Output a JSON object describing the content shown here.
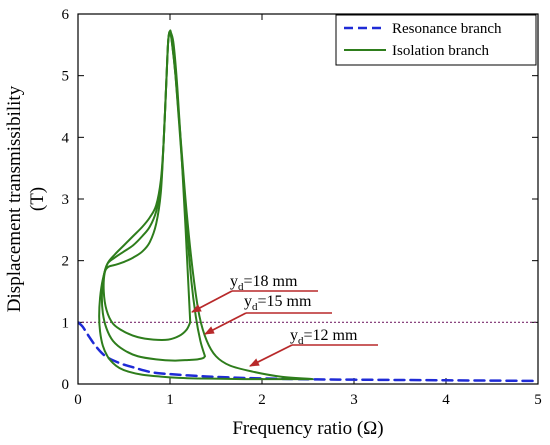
{
  "chart_data": {
    "type": "line",
    "xlabel": "Frequency ratio (Ω)",
    "ylabel_line1": "Displacement transmissibility",
    "ylabel_line2": "(T)",
    "xlim": [
      0,
      5
    ],
    "ylim": [
      0,
      6
    ],
    "xticks": [
      "0",
      "1",
      "2",
      "3",
      "4",
      "5"
    ],
    "yticks": [
      "0",
      "1",
      "2",
      "3",
      "4",
      "5",
      "6"
    ],
    "legend_position": "top-right",
    "reference_line": {
      "y": 1,
      "color": "#7b2d6f",
      "style": "dotted"
    },
    "series": [
      {
        "name": "Resonance branch",
        "color": "#1f2bd6",
        "style": "dashed",
        "x": [
          0,
          0.05,
          0.12,
          0.2,
          0.3,
          0.45,
          0.6,
          0.8,
          1.0,
          1.3,
          1.6,
          2.0,
          2.6,
          3.0,
          3.5,
          4.0,
          4.5,
          5.0
        ],
        "y": [
          1.0,
          0.93,
          0.77,
          0.6,
          0.45,
          0.34,
          0.27,
          0.19,
          0.16,
          0.13,
          0.11,
          0.09,
          0.075,
          0.07,
          0.065,
          0.06,
          0.055,
          0.05
        ]
      },
      {
        "name": "Isolation branch",
        "color": "#2e7d1c",
        "style": "solid",
        "label": "y_d=12 mm",
        "x": [
          2.55,
          2.2,
          1.9,
          1.65,
          1.5,
          1.4,
          1.32,
          1.25,
          1.18,
          1.12,
          1.06,
          1.02,
          1.0,
          0.98,
          0.96,
          0.93,
          0.9,
          0.85,
          0.78,
          0.7,
          0.6,
          0.5,
          0.4,
          0.32,
          0.27,
          0.24,
          0.23,
          0.24,
          0.27,
          0.32,
          0.38,
          0.45,
          0.55,
          0.7,
          0.9,
          1.1,
          1.3,
          1.55,
          1.8,
          2.1,
          2.55
        ],
        "y": [
          0.08,
          0.12,
          0.2,
          0.3,
          0.45,
          0.7,
          1.1,
          1.8,
          2.8,
          3.9,
          5.0,
          5.55,
          5.72,
          5.55,
          4.9,
          3.9,
          3.3,
          2.9,
          2.7,
          2.55,
          2.4,
          2.25,
          2.1,
          1.95,
          1.7,
          1.4,
          1.1,
          0.85,
          0.62,
          0.45,
          0.34,
          0.26,
          0.2,
          0.15,
          0.12,
          0.1,
          0.09,
          0.085,
          0.08,
          0.08,
          0.08
        ]
      },
      {
        "name": "",
        "color": "#2e7d1c",
        "style": "solid",
        "label": "y_d=15 mm",
        "x": [
          1.38,
          1.33,
          1.28,
          1.23,
          1.18,
          1.12,
          1.06,
          1.02,
          1.0,
          0.98,
          0.96,
          0.93,
          0.9,
          0.85,
          0.78,
          0.7,
          0.6,
          0.5,
          0.4,
          0.32,
          0.28,
          0.26,
          0.27,
          0.31,
          0.38,
          0.5,
          0.65,
          0.85,
          1.05,
          1.2,
          1.3,
          1.36,
          1.38
        ],
        "y": [
          0.45,
          0.7,
          1.1,
          1.7,
          2.6,
          3.8,
          5.0,
          5.55,
          5.72,
          5.55,
          4.9,
          3.9,
          3.2,
          2.8,
          2.55,
          2.4,
          2.25,
          2.15,
          2.05,
          1.95,
          1.75,
          1.45,
          1.15,
          0.9,
          0.7,
          0.55,
          0.45,
          0.4,
          0.38,
          0.39,
          0.4,
          0.42,
          0.45
        ]
      },
      {
        "name": "",
        "color": "#2e7d1c",
        "style": "solid",
        "label": "y_d=18 mm",
        "x": [
          1.22,
          1.2,
          1.17,
          1.13,
          1.08,
          1.04,
          1.01,
          1.0,
          0.98,
          0.96,
          0.93,
          0.9,
          0.85,
          0.78,
          0.7,
          0.6,
          0.5,
          0.4,
          0.33,
          0.29,
          0.28,
          0.31,
          0.38,
          0.5,
          0.65,
          0.82,
          0.98,
          1.1,
          1.18,
          1.22
        ],
        "y": [
          1.0,
          1.6,
          2.5,
          3.6,
          4.8,
          5.5,
          5.7,
          5.72,
          5.55,
          4.9,
          3.9,
          3.1,
          2.6,
          2.3,
          2.15,
          2.05,
          1.98,
          1.93,
          1.9,
          1.8,
          1.5,
          1.2,
          0.98,
          0.85,
          0.76,
          0.72,
          0.72,
          0.78,
          0.88,
          1.0
        ]
      }
    ],
    "annotations": [
      {
        "base": "y",
        "sub": "d",
        "rest": "=18 mm",
        "color": "#b8292a"
      },
      {
        "base": "y",
        "sub": "d",
        "rest": "=15 mm",
        "color": "#b8292a"
      },
      {
        "base": "y",
        "sub": "d",
        "rest": "=12 mm",
        "color": "#b8292a"
      }
    ]
  }
}
